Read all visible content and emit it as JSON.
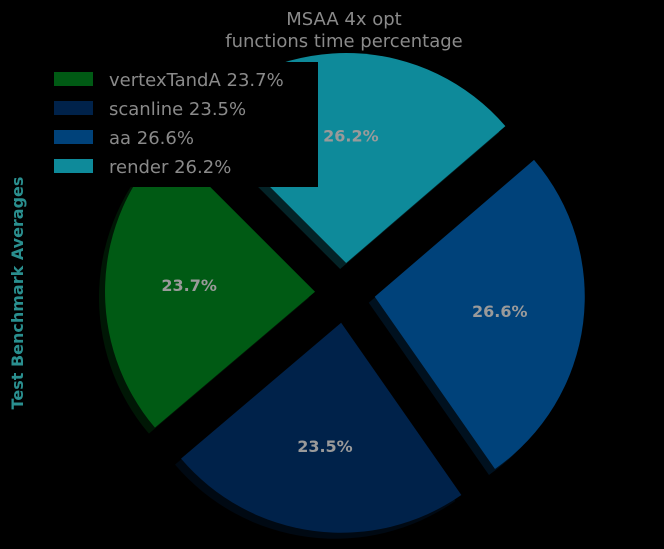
{
  "chart_data": {
    "type": "pie",
    "title": "MSAA 4x opt\nfunctions time percentage",
    "title_lines": [
      "MSAA 4x opt",
      "functions time percentage"
    ],
    "ylabel": "Test Benchmark Averages",
    "legend_position": "upper-left",
    "slices": [
      {
        "label": "vertexTandA",
        "legend": "vertexTandA 23.7%",
        "value": 23.7,
        "pct_text": "23.7%",
        "color": "#005a14"
      },
      {
        "label": "scanline",
        "legend": "scanline 23.5%",
        "value": 23.5,
        "pct_text": "23.5%",
        "color": "#00224a"
      },
      {
        "label": "aa",
        "legend": "aa 26.6%",
        "value": 26.6,
        "pct_text": "26.6%",
        "color": "#00427a"
      },
      {
        "label": "render",
        "legend": "render 26.2%",
        "value": 26.2,
        "pct_text": "26.2%",
        "color": "#0e8a9a"
      }
    ],
    "exploded": true,
    "shadow": true,
    "start_angle_deg": 135,
    "text_color": "#8a8a8a",
    "ylabel_color": "#2a8f8f",
    "background": "#000000"
  }
}
